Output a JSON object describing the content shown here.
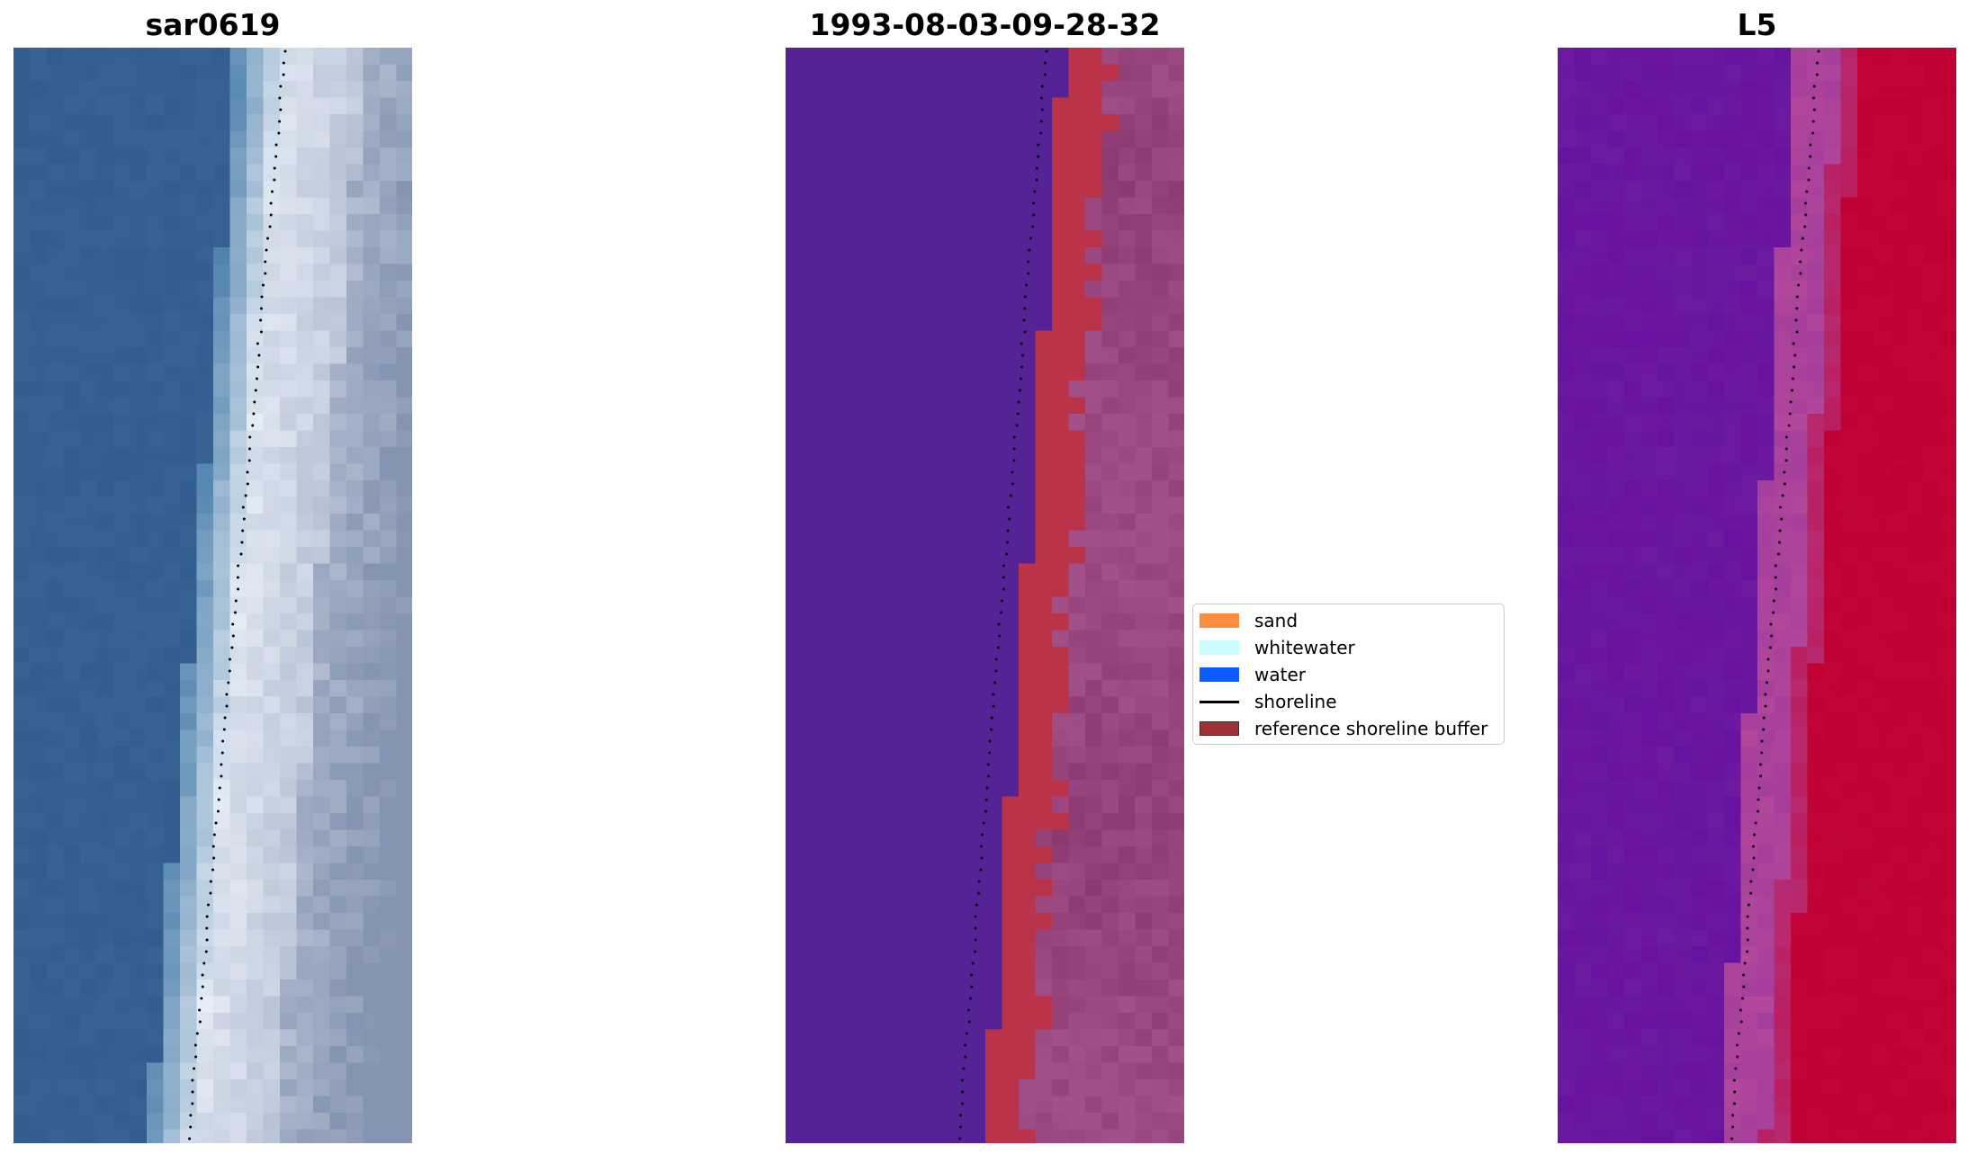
{
  "chart_data": [
    {
      "type": "heatmap",
      "title": "sar0619",
      "description_key": "rgb-image",
      "colors": {
        "water": "#325e8f",
        "nearshore": "#4f82ad",
        "foam": "#e6edf5",
        "beach": "#8594b2"
      },
      "shoreline": {
        "style": "dotted",
        "color": "#000000"
      }
    },
    {
      "type": "heatmap",
      "title": "1993-08-03-09-28-32",
      "colors": {
        "water": "#552396",
        "buffer": "#bb3349",
        "sand": "#a2508a"
      },
      "shoreline": {
        "style": "dotted",
        "color": "#000000"
      }
    },
    {
      "type": "heatmap",
      "title": "L5",
      "colors": {
        "water": "#6c1aa0",
        "transition": "#b2479b",
        "land": "#bf0033"
      },
      "shoreline": {
        "style": "dotted",
        "color": "#000000"
      }
    }
  ],
  "legend": {
    "placement": "center",
    "items": [
      {
        "label": "sand",
        "color": "#ff8c3f",
        "kind": "patch"
      },
      {
        "label": "whitewater",
        "color": "#c9fbff",
        "kind": "patch"
      },
      {
        "label": "water",
        "color": "#0a5cff",
        "kind": "patch"
      },
      {
        "label": "shoreline",
        "color": "#000000",
        "kind": "line"
      },
      {
        "label": "reference shoreline buffer",
        "color": "#9e3235",
        "kind": "patch"
      }
    ]
  }
}
